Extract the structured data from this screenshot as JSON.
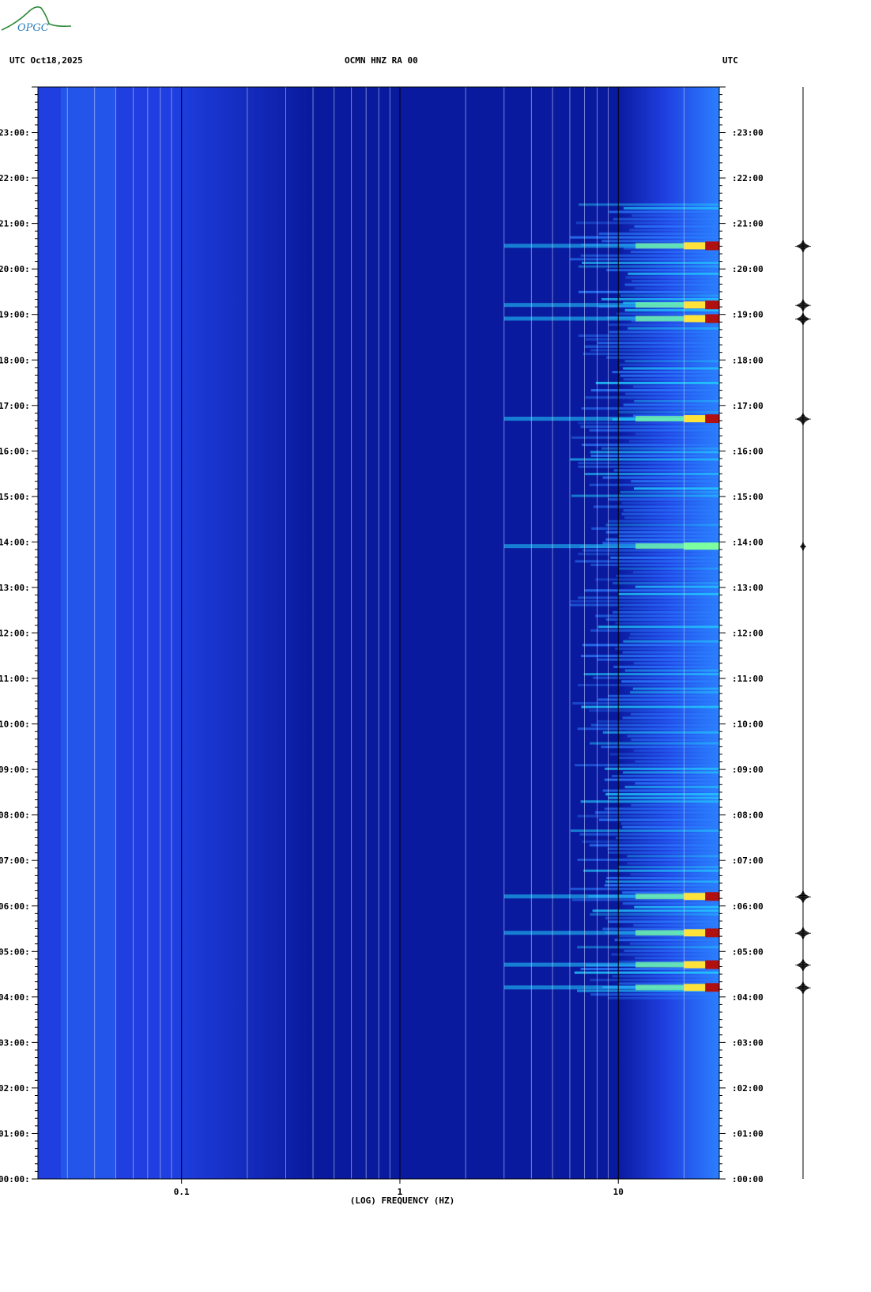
{
  "header": {
    "left_label": "UTC  Oct18,2025",
    "center_label": "OCMN HNZ RA 00",
    "right_label": "UTC"
  },
  "logo": {
    "text": "OPGC"
  },
  "chart_data": {
    "type": "heatmap",
    "title": "OCMN HNZ RA 00",
    "date": "Oct18,2025",
    "xlabel": "(LOG) FREQUENCY (HZ)",
    "ylabel": "UTC",
    "x_scale": "log",
    "x_tick_labels": [
      "0.1",
      "1",
      "10"
    ],
    "y_tick_labels": [
      "00:00",
      "01:00",
      "02:00",
      "03:00",
      "04:00",
      "05:00",
      "06:00",
      "07:00",
      "08:00",
      "09:00",
      "10:00",
      "11:00",
      "12:00",
      "13:00",
      "14:00",
      "15:00",
      "16:00",
      "17:00",
      "18:00",
      "19:00",
      "20:00",
      "21:00",
      "22:00",
      "23:00"
    ],
    "xlim_hz": [
      0.022,
      29
    ],
    "ylim_hours": [
      0,
      24
    ],
    "colormap": [
      "#0a1a9e",
      "#1f3fe0",
      "#2b7fff",
      "#22d3ff",
      "#7dffa0",
      "#ffe23a",
      "#ff7a1a",
      "#b01010"
    ],
    "events": [
      {
        "time_h": 4.2,
        "level": "high"
      },
      {
        "time_h": 4.7,
        "level": "high"
      },
      {
        "time_h": 5.4,
        "level": "high"
      },
      {
        "time_h": 6.2,
        "level": "high"
      },
      {
        "time_h": 16.7,
        "level": "high"
      },
      {
        "time_h": 18.9,
        "level": "high"
      },
      {
        "time_h": 19.2,
        "level": "high"
      },
      {
        "time_h": 20.5,
        "level": "high"
      },
      {
        "time_h": 13.9,
        "level": "medium"
      }
    ]
  }
}
